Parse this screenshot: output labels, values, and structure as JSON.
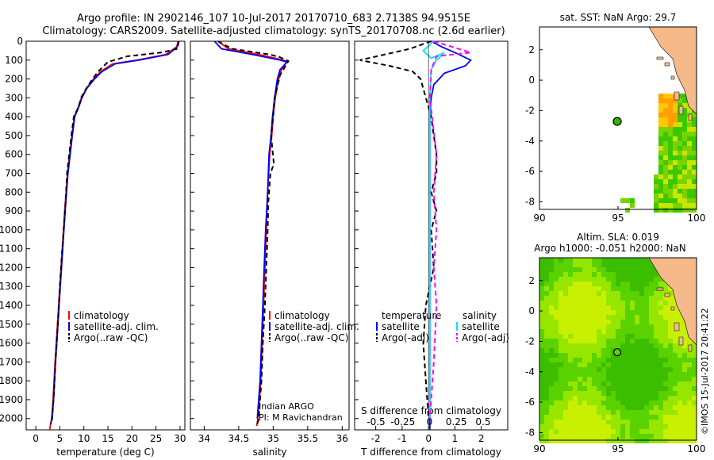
{
  "header": {
    "title_line1": "Argo profile: IN 2902146_107 10-Jul-2017 20170710_683 2.7138S 94.9515E",
    "title_line2": "Climatology: CARS2009. Satellite-adjusted climatology: synTS_20170708.nc (2.6d earlier)"
  },
  "credit": "©IMOS 15-Jul-2017 20:41:22",
  "colors": {
    "climatology": "#ff0000",
    "satellite": "#0000ff",
    "argo": "#000000",
    "salinity_satellite": "#00e5ff",
    "salinity_argo": "#ff00ff",
    "land": "#f5b98a",
    "map_bg_top": "#ffffff",
    "map_bg_bottom": "#00c800"
  },
  "legend": {
    "climatology": "climatology",
    "satellite": "satellite-adj. clim.",
    "argo": "Argo(..raw -QC)",
    "diff_temperature_header": "temperature",
    "diff_salinity_header": "salinity",
    "diff_satellite": "satellite",
    "diff_argo": "Argo(-adj)"
  },
  "annotations": {
    "program": "Indian ARGO",
    "pi": "PI: M Ravichandran"
  },
  "chart_data": [
    {
      "type": "line",
      "name": "temperature_profile",
      "xlabel": "temperature (deg C)",
      "ylabel": "",
      "xlim": [
        -2,
        31
      ],
      "ylim": [
        2060,
        0
      ],
      "xticks": [
        0,
        5,
        10,
        15,
        20,
        25,
        30
      ],
      "yticks": [
        0,
        100,
        200,
        300,
        400,
        500,
        600,
        700,
        800,
        900,
        1000,
        1100,
        1200,
        1300,
        1400,
        1500,
        1600,
        1700,
        1800,
        1900,
        2000
      ],
      "series": [
        {
          "name": "climatology",
          "color": "#ff0000",
          "x": [
            29.6,
            29.3,
            27,
            21,
            16,
            13.5,
            12,
            10.5,
            9.5,
            8.8,
            8,
            7.5,
            6.6,
            6,
            5.5,
            5,
            4.5,
            4,
            3.6,
            3.3,
            3.0,
            2.9
          ],
          "y": [
            0,
            30,
            70,
            100,
            120,
            160,
            200,
            250,
            300,
            350,
            400,
            500,
            700,
            900,
            1100,
            1300,
            1500,
            1700,
            1900,
            2000,
            2040,
            2060
          ]
        },
        {
          "name": "satellite-adj. clim.",
          "color": "#0000ff",
          "x": [
            29.8,
            29.4,
            27.5,
            21.5,
            16.5,
            13.8,
            12.2,
            10.6,
            9.6,
            8.9,
            8.1,
            7.6,
            6.7,
            6.1,
            5.6,
            5.1,
            4.6,
            4.1,
            3.7,
            3.4,
            3.1
          ],
          "y": [
            0,
            30,
            70,
            100,
            120,
            160,
            200,
            250,
            300,
            350,
            400,
            500,
            700,
            900,
            1100,
            1300,
            1500,
            1700,
            1900,
            2000,
            2030
          ]
        },
        {
          "name": "Argo(..raw -QC)",
          "color": "#000000",
          "x": [
            29.7,
            29.5,
            26,
            19,
            15,
            13,
            11.8,
            10.5,
            9.4,
            8.9,
            7.9,
            7.4,
            6.5,
            6.1,
            5.5,
            5.0,
            4.6,
            4.1,
            3.7,
            3.4,
            3.1
          ],
          "y": [
            0,
            40,
            60,
            80,
            110,
            160,
            200,
            250,
            300,
            350,
            400,
            500,
            700,
            900,
            1100,
            1300,
            1500,
            1700,
            1900,
            2000,
            2030
          ]
        }
      ]
    },
    {
      "type": "line",
      "name": "salinity_profile",
      "xlabel": "salinity",
      "ylabel": "",
      "xlim": [
        33.8,
        36.1
      ],
      "ylim": [
        2060,
        0
      ],
      "xticks": [
        34,
        34.5,
        35,
        35.5,
        36
      ],
      "series": [
        {
          "name": "climatology",
          "color": "#ff0000",
          "x": [
            34.2,
            34.35,
            34.8,
            35.15,
            35.2,
            35.12,
            35.08,
            35.03,
            35.0,
            34.98,
            34.95,
            34.92,
            34.9,
            34.88,
            34.86,
            34.84,
            34.82,
            34.8,
            34.78,
            34.76
          ],
          "y": [
            0,
            40,
            70,
            100,
            110,
            150,
            200,
            300,
            400,
            500,
            600,
            800,
            1000,
            1200,
            1400,
            1600,
            1800,
            1900,
            2000,
            2040
          ]
        },
        {
          "name": "satellite-adj. clim.",
          "color": "#0000ff",
          "x": [
            34.15,
            34.25,
            34.7,
            35.1,
            35.2,
            35.1,
            35.06,
            35.02,
            34.99,
            34.97,
            34.94,
            34.92,
            34.89,
            34.87,
            34.85,
            34.83,
            34.81,
            34.79,
            34.77
          ],
          "y": [
            0,
            40,
            70,
            100,
            110,
            150,
            200,
            300,
            400,
            500,
            600,
            800,
            1000,
            1200,
            1400,
            1600,
            1800,
            1900,
            2000
          ]
        },
        {
          "name": "Argo(..raw -QC)",
          "color": "#000000",
          "x": [
            34.2,
            34.4,
            34.95,
            35.1,
            35.22,
            35.18,
            35.1,
            35.02,
            35.0,
            34.97,
            35.01,
            34.96,
            34.93,
            34.92,
            34.9,
            34.88,
            34.85,
            34.83,
            34.81,
            34.79,
            34.77
          ],
          "y": [
            0,
            40,
            70,
            85,
            105,
            130,
            180,
            300,
            400,
            500,
            650,
            700,
            850,
            1000,
            1200,
            1400,
            1600,
            1800,
            1900,
            2000,
            2030
          ]
        }
      ]
    },
    {
      "type": "line",
      "name": "difference_profile",
      "xlabel": "T difference from climatology",
      "top_xlabel": "S difference from climatology",
      "ylabel": "",
      "xlim": [
        -2.8,
        3.0
      ],
      "ylim": [
        2060,
        0
      ],
      "xticks": [
        -2,
        -1,
        0,
        1,
        2
      ],
      "top_xticks": [
        -0.5,
        -0.25,
        0,
        0.25,
        0.5
      ],
      "series": [
        {
          "name": "temperature satellite",
          "color": "#0000ff",
          "x": [
            0.1,
            0.5,
            1.0,
            1.6,
            1.4,
            0.6,
            0.2,
            0.1,
            0.05,
            0.05,
            0.05,
            0.05,
            0.05,
            0.05,
            0.05,
            0.05
          ],
          "y": [
            0,
            30,
            60,
            100,
            130,
            170,
            230,
            300,
            400,
            600,
            800,
            1000,
            1300,
            1600,
            1900,
            2060
          ]
        },
        {
          "name": "temperature Argo(-adj)",
          "color": "#000000",
          "x": [
            0.1,
            -0.7,
            -2.6,
            -1.5,
            -0.6,
            -0.3,
            -0.1,
            0.1,
            0.2,
            0.3,
            0.3,
            0.1,
            0.3,
            0.1,
            0.2,
            -0.1,
            -0.2,
            -0.1,
            0.0
          ],
          "y": [
            0,
            40,
            100,
            130,
            160,
            200,
            300,
            400,
            500,
            600,
            700,
            800,
            900,
            1000,
            1200,
            1400,
            1600,
            1800,
            2000
          ]
        },
        {
          "name": "salinity satellite",
          "color": "#00e5ff",
          "x": [
            0.2,
            -0.2,
            0.1,
            0.6,
            0.3,
            0.1,
            0.05,
            0.05,
            0.05,
            0.05,
            0.05
          ],
          "y": [
            0,
            50,
            90,
            60,
            100,
            150,
            300,
            600,
            1000,
            1500,
            2000
          ]
        },
        {
          "name": "salinity Argo(-adj)",
          "color": "#ff00ff",
          "x": [
            0.2,
            1.6,
            0.3,
            0.1,
            0.05,
            0.3,
            0.2,
            0.3,
            0.2,
            0.3,
            0.2,
            0.05
          ],
          "y": [
            0,
            60,
            80,
            150,
            300,
            600,
            800,
            1000,
            1200,
            1400,
            1700,
            2000
          ]
        }
      ]
    },
    {
      "type": "heatmap",
      "name": "sst_map",
      "title": "sat. SST: NaN Argo: 29.7",
      "xlim": [
        90,
        100
      ],
      "ylim": [
        -8.5,
        3.5
      ],
      "xticks": [
        90,
        95,
        100
      ],
      "yticks": [
        -8,
        -6,
        -4,
        -2,
        0,
        2
      ],
      "argo_position": [
        94.9515,
        -2.7138
      ]
    },
    {
      "type": "heatmap",
      "name": "sla_map",
      "title_line1": "Altim. SLA: 0.019",
      "title_line2": "Argo h1000: -0.051 h2000: NaN",
      "xlim": [
        90,
        100
      ],
      "ylim": [
        -8.5,
        3.5
      ],
      "xticks": [
        90,
        95,
        100
      ],
      "yticks": [
        -8,
        -6,
        -4,
        -2,
        0,
        2
      ],
      "argo_position": [
        94.9515,
        -2.7138
      ]
    }
  ]
}
